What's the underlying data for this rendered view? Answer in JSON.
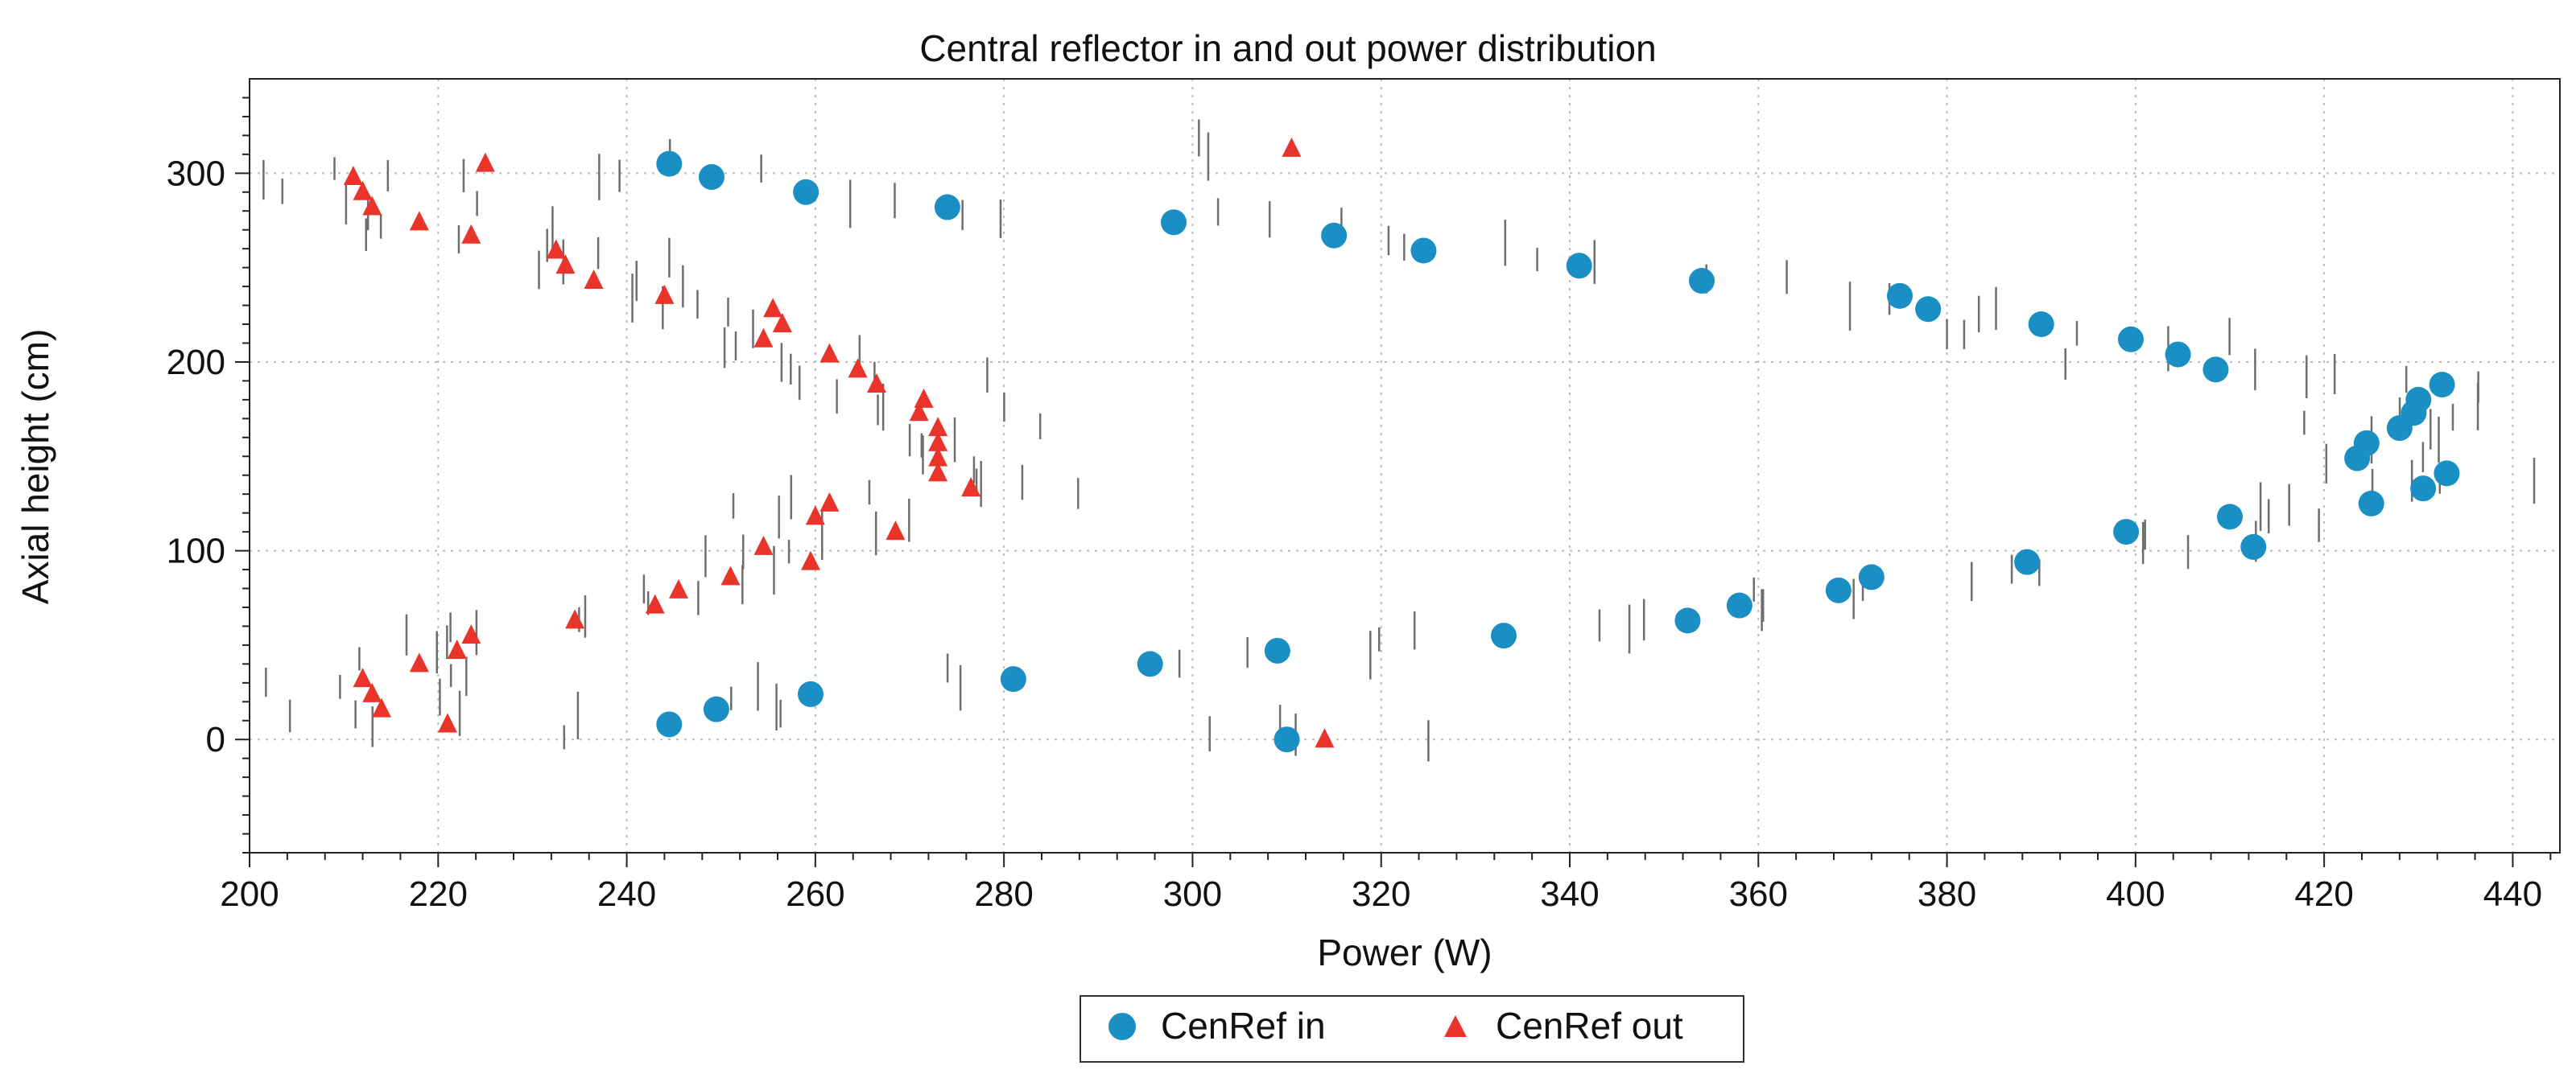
{
  "chart_data": {
    "type": "scatter",
    "title": "Central reflector in and out power distribution",
    "xlabel": "Power (W)",
    "ylabel": "Axial height (cm)",
    "xlim": [
      200,
      445
    ],
    "ylim": [
      -60,
      350
    ],
    "xticks": [
      200,
      220,
      240,
      260,
      280,
      300,
      320,
      340,
      360,
      380,
      400,
      420,
      440
    ],
    "yticks": [
      0,
      100,
      200,
      300
    ],
    "grid": true,
    "legend_position": "bottom-center",
    "colors": {
      "in": "#1a8fc4",
      "out": "#e8342b",
      "errorbar": "#6e6e6e",
      "grid": "#bbbbbb"
    },
    "series": [
      {
        "name": "CenRef in",
        "marker": "circle",
        "x": [
          244.5,
          249.5,
          259.5,
          281,
          295.5,
          309,
          333,
          352.5,
          358,
          368.5,
          372,
          388.5,
          399,
          410,
          412.5,
          423.5,
          425,
          428,
          429.5,
          430,
          430.5,
          432.5,
          433,
          424.5,
          408.5,
          404.5,
          399.5,
          390,
          378,
          375,
          354,
          341,
          324.5,
          315,
          298,
          274,
          259,
          249,
          244.5,
          310
        ],
        "y": [
          8,
          16,
          24,
          32,
          40,
          47,
          55,
          63,
          71,
          79,
          86,
          94,
          110,
          118,
          102,
          149,
          125,
          165,
          173,
          180,
          133,
          188,
          141,
          157,
          196,
          204,
          212,
          220,
          228,
          235,
          243,
          251,
          259,
          267,
          274,
          282,
          290,
          298,
          305,
          0
        ]
      },
      {
        "name": "CenRef out",
        "marker": "triangle",
        "x": [
          221,
          214,
          213,
          212,
          218,
          222,
          223.5,
          234.5,
          243,
          245.5,
          251,
          254.5,
          259.5,
          260,
          261.5,
          268.5,
          273,
          276.5,
          273,
          273,
          273,
          271,
          271.5,
          266.5,
          264.5,
          261.5,
          256.5,
          255.5,
          254.5,
          244,
          236.5,
          233.5,
          232.5,
          223.5,
          218,
          213,
          212,
          211,
          225,
          310.5,
          314
        ],
        "y": [
          8,
          16,
          24,
          32,
          40,
          47,
          55,
          63,
          71,
          79,
          86,
          102,
          94,
          118,
          125,
          110,
          141,
          133,
          149,
          157,
          165,
          173,
          180,
          188,
          196,
          204,
          220,
          228,
          212,
          235,
          243,
          251,
          259,
          267,
          274,
          282,
          290,
          298,
          305,
          313,
          0
        ]
      }
    ]
  },
  "legend": {
    "in_label": "CenRef in",
    "out_label": "CenRef out"
  }
}
